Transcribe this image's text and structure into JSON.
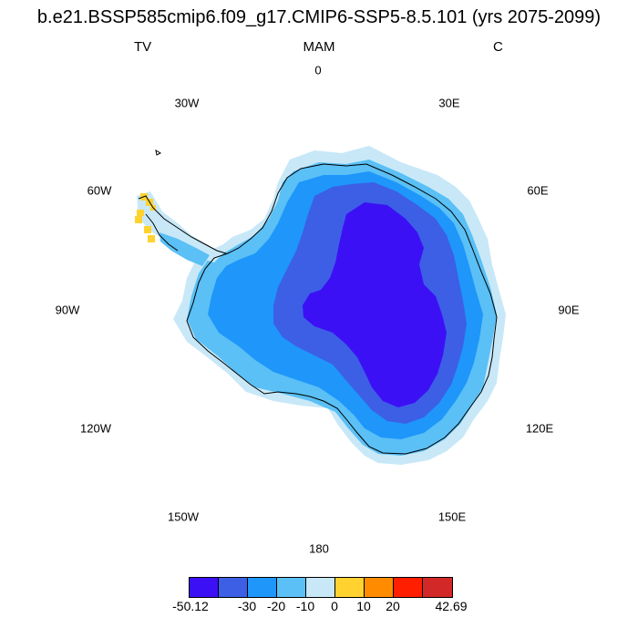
{
  "title": "b.e21.BSSP585cmip6.f09_g17.CMIP6-SSP5-8.5.101 (yrs 2075-2099)",
  "left_label": "TV",
  "center_label": "MAM",
  "right_label": "C",
  "longitude_labels": {
    "lon_0": "0",
    "lon_30e": "30E",
    "lon_60e": "60E",
    "lon_90e": "90E",
    "lon_120e": "120E",
    "lon_150e": "150E",
    "lon_180": "180",
    "lon_150w": "150W",
    "lon_120w": "120W",
    "lon_90w": "90W",
    "lon_60w": "60W",
    "lon_30w": "30W"
  },
  "colorbar": {
    "colors": [
      "#3c10f5",
      "#3c5fe6",
      "#1e96fa",
      "#5ac0f5",
      "#c8e8f8",
      "#ffd230",
      "#ff8c00",
      "#ff1e00",
      "#d22828"
    ],
    "labels": {
      "min": "-50.12",
      "m30": "-30",
      "m20": "-20",
      "m10": "-10",
      "z0": "0",
      "p10": "10",
      "p20": "20",
      "max": "42.69"
    }
  },
  "map_colors": {
    "lightest": "#c8e8f8",
    "light": "#5ac0f5",
    "mid": "#1e96fa",
    "dark": "#3c5fe6",
    "darkest": "#3c10f5",
    "positive": "#ffd230"
  }
}
